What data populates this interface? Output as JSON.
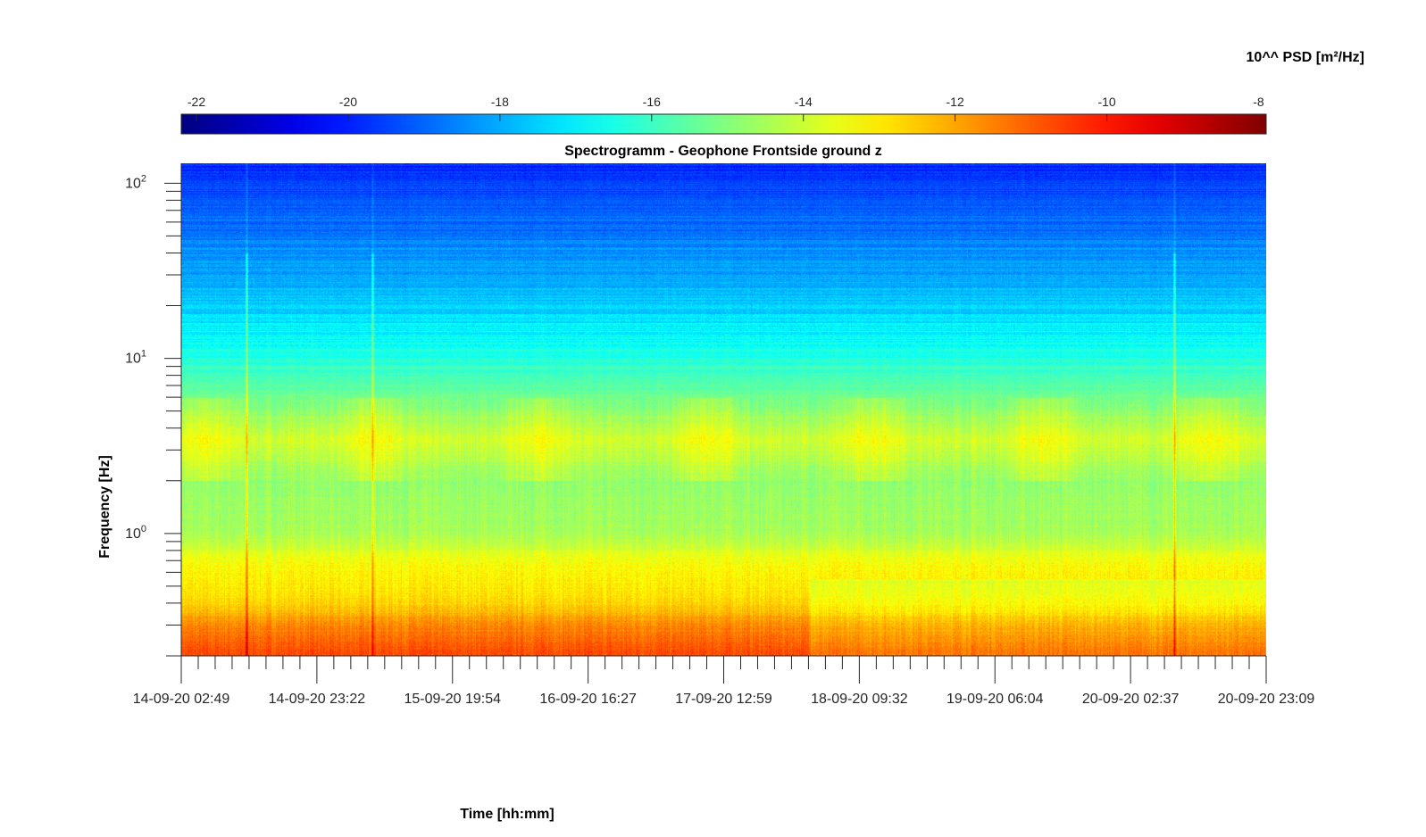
{
  "chart_data": {
    "type": "heatmap",
    "title": "Spectrogramm - Geophone Frontside ground z",
    "xlabel": "Time [hh:mm]",
    "ylabel": "Frequency [Hz]",
    "colorbar_label": "10^^ PSD [m²/Hz]",
    "x_ticks": [
      "14-09-20 02:49",
      "14-09-20 23:22",
      "15-09-20 19:54",
      "16-09-20 16:27",
      "17-09-20 12:59",
      "18-09-20 09:32",
      "19-09-20 06:04",
      "20-09-20 02:37",
      "20-09-20 23:09"
    ],
    "y_scale": "log",
    "y_ticks": [
      {
        "base": "10",
        "exp": "0",
        "value": 1
      },
      {
        "base": "10",
        "exp": "1",
        "value": 10
      },
      {
        "base": "10",
        "exp": "2",
        "value": 100
      }
    ],
    "ylim": [
      0.2,
      130
    ],
    "colorbar_ticks": [
      "-22",
      "-20",
      "-18",
      "-16",
      "-14",
      "-12",
      "-10",
      "-8"
    ],
    "clim": [
      -22.2,
      -7.9
    ],
    "colormap": "jet",
    "psd_profile_log10": [
      {
        "f": 0.2,
        "psd": -10.6
      },
      {
        "f": 0.3,
        "psd": -11.6
      },
      {
        "f": 0.4,
        "psd": -12.7
      },
      {
        "f": 0.7,
        "psd": -13.4
      },
      {
        "f": 1.0,
        "psd": -14.5
      },
      {
        "f": 2.0,
        "psd": -14.8
      },
      {
        "f": 3.5,
        "psd": -13.9
      },
      {
        "f": 6.0,
        "psd": -15.3
      },
      {
        "f": 12.0,
        "psd": -16.6
      },
      {
        "f": 20.0,
        "psd": -17.6
      },
      {
        "f": 40.0,
        "psd": -18.4
      },
      {
        "f": 80.0,
        "psd": -19.3
      },
      {
        "f": 130.0,
        "psd": -19.8
      }
    ],
    "transient_events_x_fraction": [
      0.06,
      0.176,
      0.915
    ]
  }
}
